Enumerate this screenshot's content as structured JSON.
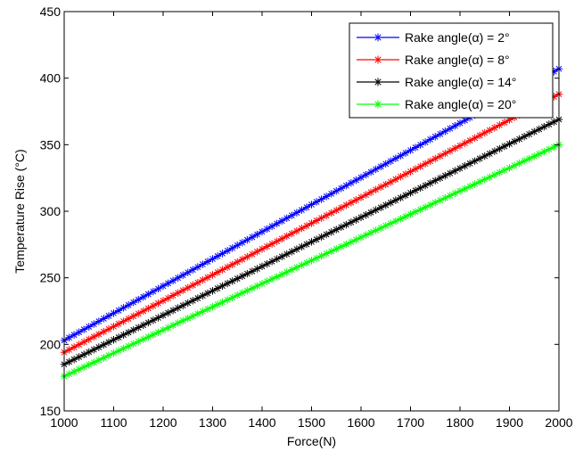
{
  "chart_data": {
    "type": "line",
    "title": "",
    "xlabel": "Force(N)",
    "ylabel": "Temperature Rise (°C)",
    "xlim": [
      1000,
      2000
    ],
    "ylim": [
      150,
      450
    ],
    "x_ticks": [
      1000,
      1100,
      1200,
      1300,
      1400,
      1500,
      1600,
      1700,
      1800,
      1900,
      2000
    ],
    "y_ticks": [
      150,
      200,
      250,
      300,
      350,
      400,
      450
    ],
    "x_tick_labels": [
      "1000",
      "1100",
      "1200",
      "1300",
      "1400",
      "1500",
      "1600",
      "1700",
      "1800",
      "1900",
      "2000"
    ],
    "y_tick_labels": [
      "150",
      "200",
      "250",
      "300",
      "350",
      "400",
      "450"
    ],
    "grid": false,
    "legend_position": "top-right",
    "marker": "*",
    "x": [
      1000,
      2000
    ],
    "series": [
      {
        "name": "Rake angle(α) = 2°",
        "color": "#0000ff",
        "values": [
          203,
          407
        ]
      },
      {
        "name": "Rake angle(α) = 8°",
        "color": "#ff0000",
        "values": [
          194,
          388
        ]
      },
      {
        "name": "Rake angle(α) = 14°",
        "color": "#000000",
        "values": [
          185,
          369
        ]
      },
      {
        "name": "Rake angle(α) = 20°",
        "color": "#00ff00",
        "values": [
          176,
          350
        ]
      }
    ]
  }
}
